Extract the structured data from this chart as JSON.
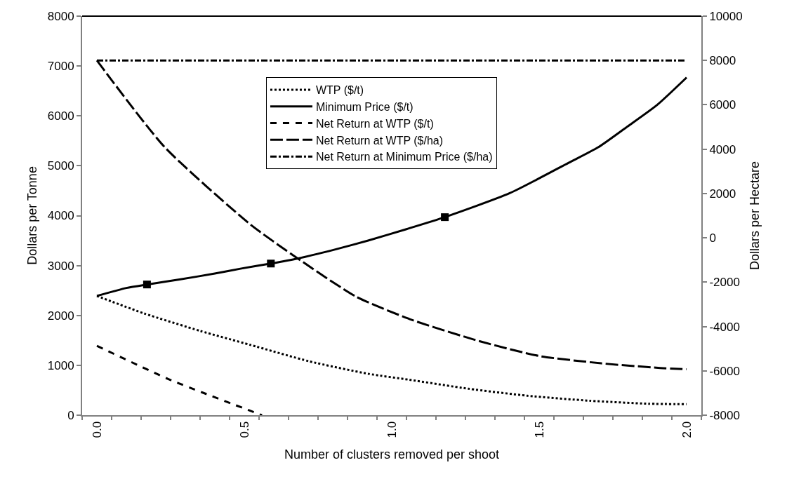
{
  "chart_data": {
    "type": "line",
    "xlabel": "Number of clusters removed per shoot",
    "ylabel": "Dollars per Tonne",
    "y2label": "Dollars per Hectare",
    "xlim": [
      -0.05,
      2.05
    ],
    "xticks": [
      {
        "value": 0,
        "label": "0.0"
      },
      {
        "value": 0.5,
        "label": "0.5"
      },
      {
        "value": 1,
        "label": "1.0"
      },
      {
        "value": 1.5,
        "label": "1.5"
      },
      {
        "value": 2,
        "label": "2.0"
      },
      {
        "value": -0.05,
        "label": null
      },
      {
        "value": 0.05,
        "label": null
      },
      {
        "value": 0.15,
        "label": null
      },
      {
        "value": 0.25,
        "label": null
      },
      {
        "value": 0.35,
        "label": null
      },
      {
        "value": 0.45,
        "label": null
      },
      {
        "value": 0.55,
        "label": null
      },
      {
        "value": 0.65,
        "label": null
      },
      {
        "value": 0.75,
        "label": null
      },
      {
        "value": 0.85,
        "label": null
      },
      {
        "value": 0.95,
        "label": null
      },
      {
        "value": 1.05,
        "label": null
      },
      {
        "value": 1.15,
        "label": null
      },
      {
        "value": 1.25,
        "label": null
      },
      {
        "value": 1.35,
        "label": null
      },
      {
        "value": 1.45,
        "label": null
      },
      {
        "value": 1.55,
        "label": null
      },
      {
        "value": 1.65,
        "label": null
      },
      {
        "value": 1.75,
        "label": null
      },
      {
        "value": 1.85,
        "label": null
      },
      {
        "value": 1.95,
        "label": null
      },
      {
        "value": 2.05,
        "label": null
      }
    ],
    "ylim": [
      0,
      8000
    ],
    "yticks": [
      0,
      1000,
      2000,
      3000,
      4000,
      5000,
      6000,
      7000,
      8000
    ],
    "y2lim": [
      -8000,
      10000
    ],
    "y2ticks": [
      -8000,
      -6000,
      -4000,
      -2000,
      0,
      2000,
      4000,
      6000,
      8000,
      10000
    ],
    "legend": "top",
    "series": [
      {
        "name": "WTP ($/t)",
        "color": "#000000",
        "line_style": "dotted",
        "marker": "none",
        "x": [
          0,
          0.16,
          0.35,
          0.52,
          0.72,
          0.92,
          1.06,
          1.26,
          1.46,
          1.67,
          1.87,
          2.0
        ],
        "values": [
          2390,
          2040,
          1690,
          1410,
          1080,
          830,
          710,
          530,
          390,
          290,
          230,
          220
        ]
      },
      {
        "name": "Minimum Price ($/t)",
        "color": "#000000",
        "line_style": "solid",
        "marker": "none",
        "x": [
          0,
          0.1,
          0.17,
          0.28,
          0.4,
          0.49,
          0.59,
          0.68,
          0.8,
          0.92,
          1.05,
          1.18,
          1.4,
          1.6,
          1.7,
          1.8,
          1.9,
          2.0
        ],
        "values": [
          2390,
          2550,
          2620,
          2720,
          2840,
          2940,
          3040,
          3140,
          3310,
          3500,
          3730,
          3970,
          4450,
          5060,
          5370,
          5790,
          6220,
          6770
        ]
      },
      {
        "type": "scatter",
        "color": "#000000",
        "marker": "square",
        "x": [
          0.17,
          0.59,
          1.18
        ],
        "values": [
          2620,
          3040,
          3970
        ]
      },
      {
        "name": "Net Return at WTP ($/t)",
        "color": "#000000",
        "line_style": "dashed",
        "marker": "none",
        "x": [
          0,
          0.24,
          0.36,
          0.56
        ],
        "values": [
          1390,
          730,
          450,
          0
        ]
      },
      {
        "name": "Net Return at WTP ($/ha)",
        "axis": "y2",
        "color": "#000000",
        "line_style": "longdash",
        "marker": "none",
        "x": [
          0,
          0.23,
          0.52,
          0.68,
          0.88,
          1.07,
          1.3,
          1.5,
          1.71,
          1.91,
          2.0
        ],
        "values": [
          8000,
          4090,
          610,
          -920,
          -2660,
          -3710,
          -4670,
          -5330,
          -5660,
          -5870,
          -5930
        ]
      },
      {
        "name": "Net Return at Minimum Price ($/ha)",
        "axis": "y2",
        "color": "#000000",
        "line_style": "dashdot",
        "marker": "none",
        "x": [
          0,
          2.0
        ],
        "values": [
          8000,
          8000
        ]
      }
    ]
  }
}
